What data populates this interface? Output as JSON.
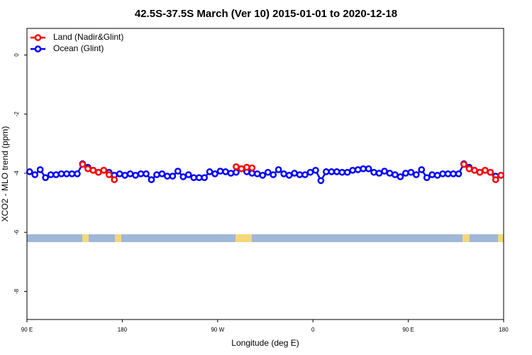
{
  "chart_data": {
    "type": "line",
    "title": "42.5S-37.5S March (Ver 10)   2015-01-01 to 2020-12-18",
    "x_label": "Longitude (deg E)",
    "y_label": "XCO2 - MLO trend (ppm)",
    "xlim": [
      90,
      540
    ],
    "ylim": [
      -8.95,
      0.9
    ],
    "xticks": [
      {
        "value": 90,
        "label": "90 E"
      },
      {
        "value": 180,
        "label": "180"
      },
      {
        "value": 270,
        "label": "90 W"
      },
      {
        "value": 360,
        "label": "0"
      },
      {
        "value": 450,
        "label": "90 E"
      },
      {
        "value": 540,
        "label": "180"
      }
    ],
    "yticks": [
      0,
      -2,
      -4,
      -6,
      -8
    ],
    "legend_position": "top-left",
    "x": [
      92.5,
      97.5,
      102.5,
      107.5,
      112.5,
      117.5,
      122.5,
      127.5,
      132.5,
      137.5,
      142.5,
      147.5,
      152.5,
      157.5,
      162.5,
      167.5,
      172.5,
      177.5,
      182.5,
      187.5,
      192.5,
      197.5,
      202.5,
      207.5,
      212.5,
      217.5,
      222.5,
      227.5,
      232.5,
      237.5,
      242.5,
      247.5,
      252.5,
      257.5,
      262.5,
      267.5,
      272.5,
      277.5,
      282.5,
      287.5,
      292.5,
      297.5,
      302.5,
      307.5,
      312.5,
      317.5,
      322.5,
      327.5,
      332.5,
      337.5,
      342.5,
      347.5,
      352.5,
      357.5,
      362.5,
      367.5,
      372.5,
      377.5,
      382.5,
      387.5,
      392.5,
      397.5,
      402.5,
      407.5,
      412.5,
      417.5,
      422.5,
      427.5,
      432.5,
      437.5,
      442.5,
      447.5,
      452.5,
      457.5,
      462.5,
      467.5,
      472.5,
      477.5,
      482.5,
      487.5,
      492.5,
      497.5,
      502.5,
      507.5,
      512.5,
      517.5,
      522.5,
      527.5,
      532.5,
      537.5
    ],
    "series": [
      {
        "name": "Land (Nadir&Glint)",
        "color": "#ff0000",
        "values": [
          null,
          null,
          null,
          null,
          null,
          null,
          null,
          null,
          null,
          null,
          -3.7,
          -3.85,
          -3.9,
          -3.97,
          -3.9,
          -4.05,
          -4.22,
          null,
          null,
          null,
          null,
          null,
          null,
          null,
          null,
          null,
          null,
          null,
          null,
          null,
          null,
          null,
          null,
          null,
          null,
          null,
          null,
          null,
          null,
          -3.78,
          -3.85,
          -3.8,
          -3.82,
          null,
          null,
          null,
          null,
          null,
          null,
          null,
          null,
          null,
          null,
          null,
          null,
          null,
          null,
          null,
          null,
          null,
          null,
          null,
          null,
          null,
          null,
          null,
          null,
          null,
          null,
          null,
          null,
          null,
          null,
          null,
          null,
          null,
          null,
          null,
          null,
          null,
          null,
          null,
          -3.7,
          -3.85,
          -3.9,
          -3.97,
          -3.9,
          -3.97,
          -4.22,
          -4.07
        ]
      },
      {
        "name": "Ocean (Glint)",
        "color": "#0000ff",
        "values": [
          -3.95,
          -4.05,
          -3.88,
          -4.15,
          -4.05,
          -4.05,
          -4.02,
          -4.02,
          -4.02,
          -4.02,
          -3.68,
          -3.8,
          -3.9,
          -3.97,
          -3.9,
          -3.97,
          -4.07,
          -4.02,
          -4.07,
          -4.02,
          -4.07,
          -4.02,
          -4.02,
          -4.22,
          -4.05,
          -4.02,
          -4.1,
          -4.1,
          -3.93,
          -4.12,
          -4.05,
          -4.15,
          -4.15,
          -4.15,
          -3.95,
          -4.02,
          -3.93,
          -3.95,
          -4.0,
          -3.97,
          -3.85,
          -3.95,
          -4.0,
          -4.02,
          -4.07,
          -3.97,
          -4.05,
          -3.88,
          -4.02,
          -4.07,
          -4.0,
          -4.05,
          -4.05,
          -3.97,
          -3.9,
          -4.25,
          -3.95,
          -3.95,
          -3.95,
          -3.97,
          -3.97,
          -3.9,
          -3.88,
          -3.85,
          -3.85,
          -3.97,
          -4.0,
          -3.93,
          -4.0,
          -4.05,
          -4.12,
          -4.0,
          -3.97,
          -4.05,
          -3.88,
          -4.15,
          -4.05,
          -4.07,
          -4.02,
          -4.02,
          -4.02,
          -4.02,
          -3.68,
          -3.8,
          -3.9,
          -3.97,
          -3.9,
          -3.97,
          -4.1,
          -4.07
        ]
      }
    ]
  }
}
